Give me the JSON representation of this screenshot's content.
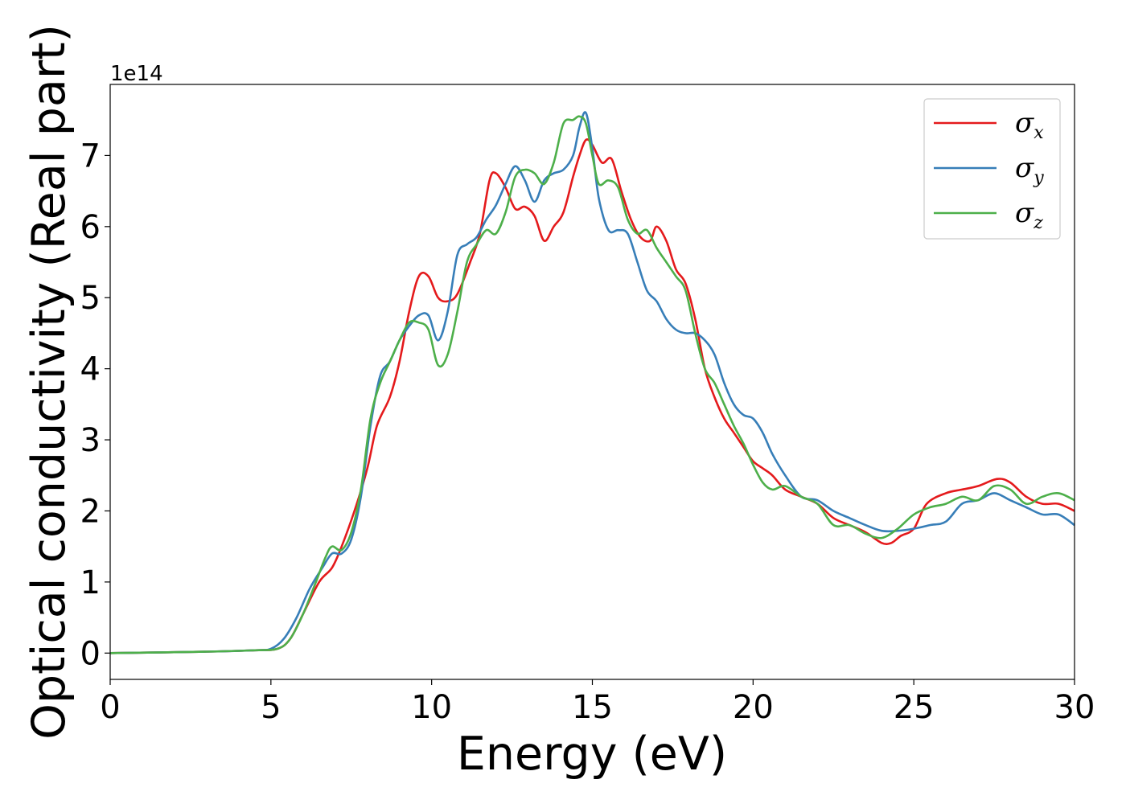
{
  "chart_data": {
    "type": "line",
    "title": "",
    "xlabel": "Energy (eV)",
    "ylabel": "Optical conductivity (Real part)",
    "y_offset_label": "1e14",
    "xlim": [
      0,
      30
    ],
    "ylim": [
      -0.37,
      8.0
    ],
    "x_ticks": [
      0,
      5,
      10,
      15,
      20,
      25,
      30
    ],
    "x_tick_labels": [
      "0",
      "5",
      "10",
      "15",
      "20",
      "25",
      "30"
    ],
    "y_ticks": [
      0,
      1,
      2,
      3,
      4,
      5,
      6,
      7
    ],
    "y_tick_labels": [
      "0",
      "1",
      "2",
      "3",
      "4",
      "5",
      "6",
      "7"
    ],
    "grid": false,
    "legend_position": "top-right",
    "series": [
      {
        "name": "σx",
        "symbol": "σ",
        "subscript": "x",
        "color": "#e41a1c",
        "points": [
          [
            0,
            0
          ],
          [
            3,
            0.02
          ],
          [
            4.5,
            0.04
          ],
          [
            5.2,
            0.06
          ],
          [
            5.6,
            0.2
          ],
          [
            6.0,
            0.55
          ],
          [
            6.5,
            1.0
          ],
          [
            6.9,
            1.2
          ],
          [
            7.2,
            1.5
          ],
          [
            7.6,
            2.0
          ],
          [
            8.0,
            2.6
          ],
          [
            8.3,
            3.2
          ],
          [
            8.7,
            3.6
          ],
          [
            9.0,
            4.1
          ],
          [
            9.3,
            4.8
          ],
          [
            9.6,
            5.3
          ],
          [
            9.9,
            5.3
          ],
          [
            10.2,
            5.0
          ],
          [
            10.5,
            4.95
          ],
          [
            10.8,
            5.05
          ],
          [
            11.2,
            5.5
          ],
          [
            11.5,
            5.9
          ],
          [
            11.8,
            6.65
          ],
          [
            12.0,
            6.75
          ],
          [
            12.3,
            6.55
          ],
          [
            12.6,
            6.25
          ],
          [
            12.9,
            6.28
          ],
          [
            13.2,
            6.15
          ],
          [
            13.5,
            5.8
          ],
          [
            13.8,
            6.0
          ],
          [
            14.1,
            6.2
          ],
          [
            14.4,
            6.7
          ],
          [
            14.6,
            7.0
          ],
          [
            14.8,
            7.22
          ],
          [
            15.0,
            7.15
          ],
          [
            15.3,
            6.9
          ],
          [
            15.6,
            6.95
          ],
          [
            15.9,
            6.5
          ],
          [
            16.2,
            6.1
          ],
          [
            16.5,
            5.85
          ],
          [
            16.8,
            5.8
          ],
          [
            17.0,
            6.0
          ],
          [
            17.3,
            5.8
          ],
          [
            17.6,
            5.4
          ],
          [
            17.9,
            5.2
          ],
          [
            18.2,
            4.7
          ],
          [
            18.5,
            4.0
          ],
          [
            18.8,
            3.6
          ],
          [
            19.1,
            3.3
          ],
          [
            19.4,
            3.1
          ],
          [
            19.7,
            2.9
          ],
          [
            20.0,
            2.7
          ],
          [
            20.3,
            2.6
          ],
          [
            20.6,
            2.5
          ],
          [
            21.0,
            2.3
          ],
          [
            21.5,
            2.2
          ],
          [
            22.0,
            2.1
          ],
          [
            22.5,
            1.9
          ],
          [
            23.0,
            1.8
          ],
          [
            23.5,
            1.7
          ],
          [
            24.0,
            1.55
          ],
          [
            24.3,
            1.55
          ],
          [
            24.6,
            1.65
          ],
          [
            25.0,
            1.75
          ],
          [
            25.4,
            2.1
          ],
          [
            26.0,
            2.25
          ],
          [
            26.5,
            2.3
          ],
          [
            27.0,
            2.35
          ],
          [
            27.6,
            2.45
          ],
          [
            28.0,
            2.4
          ],
          [
            28.5,
            2.2
          ],
          [
            29.0,
            2.1
          ],
          [
            29.5,
            2.1
          ],
          [
            30.0,
            2.0
          ]
        ]
      },
      {
        "name": "σy",
        "symbol": "σ",
        "subscript": "y",
        "color": "#377eb8",
        "points": [
          [
            0,
            0
          ],
          [
            3,
            0.02
          ],
          [
            4.5,
            0.04
          ],
          [
            5.0,
            0.06
          ],
          [
            5.4,
            0.2
          ],
          [
            5.8,
            0.5
          ],
          [
            6.2,
            0.9
          ],
          [
            6.6,
            1.2
          ],
          [
            6.9,
            1.4
          ],
          [
            7.2,
            1.4
          ],
          [
            7.5,
            1.6
          ],
          [
            7.8,
            2.2
          ],
          [
            8.1,
            3.2
          ],
          [
            8.4,
            3.9
          ],
          [
            8.7,
            4.1
          ],
          [
            9.0,
            4.4
          ],
          [
            9.3,
            4.6
          ],
          [
            9.6,
            4.75
          ],
          [
            9.9,
            4.75
          ],
          [
            10.2,
            4.4
          ],
          [
            10.5,
            4.8
          ],
          [
            10.8,
            5.6
          ],
          [
            11.1,
            5.75
          ],
          [
            11.4,
            5.85
          ],
          [
            11.7,
            6.1
          ],
          [
            12.0,
            6.3
          ],
          [
            12.3,
            6.6
          ],
          [
            12.6,
            6.85
          ],
          [
            12.9,
            6.65
          ],
          [
            13.2,
            6.35
          ],
          [
            13.5,
            6.65
          ],
          [
            13.8,
            6.75
          ],
          [
            14.1,
            6.8
          ],
          [
            14.4,
            7.0
          ],
          [
            14.6,
            7.4
          ],
          [
            14.8,
            7.6
          ],
          [
            15.0,
            7.1
          ],
          [
            15.2,
            6.4
          ],
          [
            15.5,
            5.95
          ],
          [
            15.8,
            5.95
          ],
          [
            16.1,
            5.9
          ],
          [
            16.4,
            5.5
          ],
          [
            16.7,
            5.1
          ],
          [
            17.0,
            4.95
          ],
          [
            17.3,
            4.7
          ],
          [
            17.6,
            4.55
          ],
          [
            17.9,
            4.5
          ],
          [
            18.2,
            4.5
          ],
          [
            18.5,
            4.4
          ],
          [
            18.8,
            4.2
          ],
          [
            19.1,
            3.8
          ],
          [
            19.4,
            3.5
          ],
          [
            19.7,
            3.35
          ],
          [
            20.0,
            3.3
          ],
          [
            20.3,
            3.1
          ],
          [
            20.6,
            2.8
          ],
          [
            21.0,
            2.5
          ],
          [
            21.5,
            2.2
          ],
          [
            22.0,
            2.15
          ],
          [
            22.5,
            2.0
          ],
          [
            23.0,
            1.9
          ],
          [
            23.5,
            1.8
          ],
          [
            24.0,
            1.72
          ],
          [
            24.5,
            1.72
          ],
          [
            25.0,
            1.75
          ],
          [
            25.5,
            1.8
          ],
          [
            26.0,
            1.85
          ],
          [
            26.5,
            2.1
          ],
          [
            27.0,
            2.15
          ],
          [
            27.5,
            2.25
          ],
          [
            28.0,
            2.15
          ],
          [
            28.5,
            2.05
          ],
          [
            29.0,
            1.95
          ],
          [
            29.5,
            1.95
          ],
          [
            30.0,
            1.8
          ]
        ]
      },
      {
        "name": "σz",
        "symbol": "σ",
        "subscript": "z",
        "color": "#4daf4a",
        "points": [
          [
            0,
            0
          ],
          [
            3,
            0.02
          ],
          [
            4.5,
            0.04
          ],
          [
            5.2,
            0.06
          ],
          [
            5.6,
            0.2
          ],
          [
            6.0,
            0.55
          ],
          [
            6.4,
            1.0
          ],
          [
            6.7,
            1.35
          ],
          [
            6.9,
            1.5
          ],
          [
            7.2,
            1.45
          ],
          [
            7.5,
            1.7
          ],
          [
            7.8,
            2.3
          ],
          [
            8.1,
            3.3
          ],
          [
            8.4,
            3.8
          ],
          [
            8.7,
            4.1
          ],
          [
            9.0,
            4.4
          ],
          [
            9.3,
            4.65
          ],
          [
            9.6,
            4.65
          ],
          [
            9.9,
            4.55
          ],
          [
            10.2,
            4.05
          ],
          [
            10.5,
            4.2
          ],
          [
            10.8,
            4.8
          ],
          [
            11.1,
            5.5
          ],
          [
            11.4,
            5.75
          ],
          [
            11.7,
            5.95
          ],
          [
            12.0,
            5.9
          ],
          [
            12.3,
            6.2
          ],
          [
            12.6,
            6.7
          ],
          [
            12.9,
            6.8
          ],
          [
            13.2,
            6.75
          ],
          [
            13.5,
            6.6
          ],
          [
            13.8,
            6.9
          ],
          [
            14.1,
            7.45
          ],
          [
            14.4,
            7.5
          ],
          [
            14.6,
            7.55
          ],
          [
            14.8,
            7.45
          ],
          [
            15.0,
            7.0
          ],
          [
            15.2,
            6.6
          ],
          [
            15.5,
            6.65
          ],
          [
            15.8,
            6.55
          ],
          [
            16.1,
            6.1
          ],
          [
            16.4,
            5.9
          ],
          [
            16.7,
            5.95
          ],
          [
            17.0,
            5.7
          ],
          [
            17.3,
            5.5
          ],
          [
            17.6,
            5.3
          ],
          [
            17.9,
            5.1
          ],
          [
            18.2,
            4.5
          ],
          [
            18.5,
            4.0
          ],
          [
            18.8,
            3.8
          ],
          [
            19.1,
            3.5
          ],
          [
            19.4,
            3.2
          ],
          [
            19.7,
            2.95
          ],
          [
            20.0,
            2.65
          ],
          [
            20.3,
            2.4
          ],
          [
            20.6,
            2.3
          ],
          [
            21.0,
            2.35
          ],
          [
            21.5,
            2.2
          ],
          [
            22.0,
            2.1
          ],
          [
            22.5,
            1.8
          ],
          [
            23.0,
            1.8
          ],
          [
            23.5,
            1.68
          ],
          [
            24.0,
            1.62
          ],
          [
            24.5,
            1.75
          ],
          [
            25.0,
            1.95
          ],
          [
            25.5,
            2.05
          ],
          [
            26.0,
            2.1
          ],
          [
            26.5,
            2.2
          ],
          [
            27.0,
            2.15
          ],
          [
            27.5,
            2.35
          ],
          [
            28.0,
            2.3
          ],
          [
            28.5,
            2.1
          ],
          [
            29.0,
            2.2
          ],
          [
            29.5,
            2.25
          ],
          [
            30.0,
            2.15
          ]
        ]
      }
    ]
  }
}
